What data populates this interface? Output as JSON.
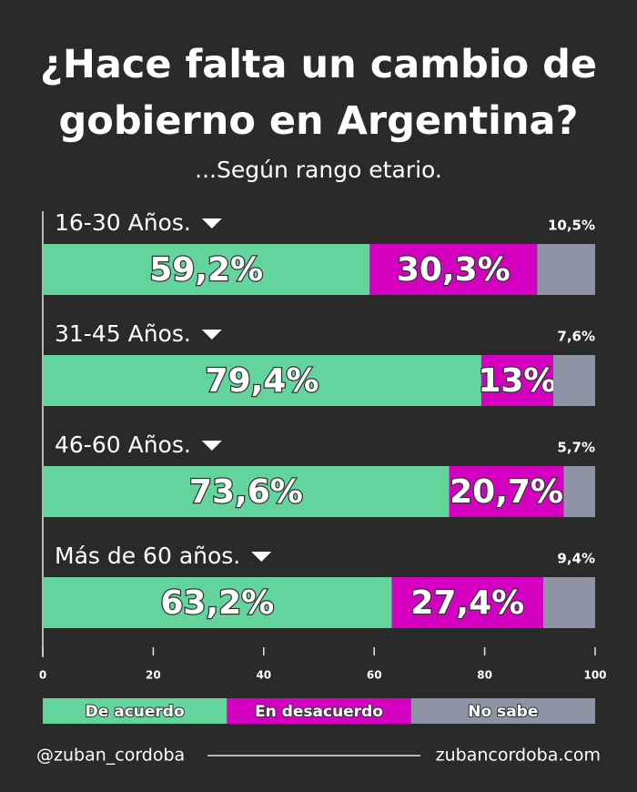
{
  "chart_data": {
    "type": "stacked-bar-horizontal",
    "title": "¿Hace falta un cambio de gobierno en Argentina?",
    "subtitle": "...Según rango etario.",
    "categories": [
      "16-30 Años.",
      "31-45 Años.",
      "46-60 Años.",
      "Más de 60 años."
    ],
    "series": [
      {
        "name": "De acuerdo",
        "color": "#62d49c",
        "values": [
          59.2,
          79.4,
          73.6,
          63.2
        ],
        "value_labels": [
          "59,2%",
          "79,4%",
          "73,6%",
          "63,2%"
        ]
      },
      {
        "name": "En desacuerdo",
        "color": "#d600c2",
        "values": [
          30.3,
          13,
          20.7,
          27.4
        ],
        "value_labels": [
          "30,3%",
          "13%",
          "20,7%",
          "27,4%"
        ]
      },
      {
        "name": "No sabe",
        "color": "#8f93a5",
        "values": [
          10.5,
          7.6,
          5.7,
          9.4
        ],
        "value_labels": [
          "10,5%",
          "7,6%",
          "5,7%",
          "9,4%"
        ]
      }
    ],
    "xlim": [
      0,
      100
    ],
    "xticks": [
      0,
      20,
      40,
      60,
      80,
      100
    ],
    "grid": false,
    "legend": "bottom"
  },
  "footer": {
    "handle": "@zuban_cordoba",
    "website": "zubancordoba.com"
  }
}
